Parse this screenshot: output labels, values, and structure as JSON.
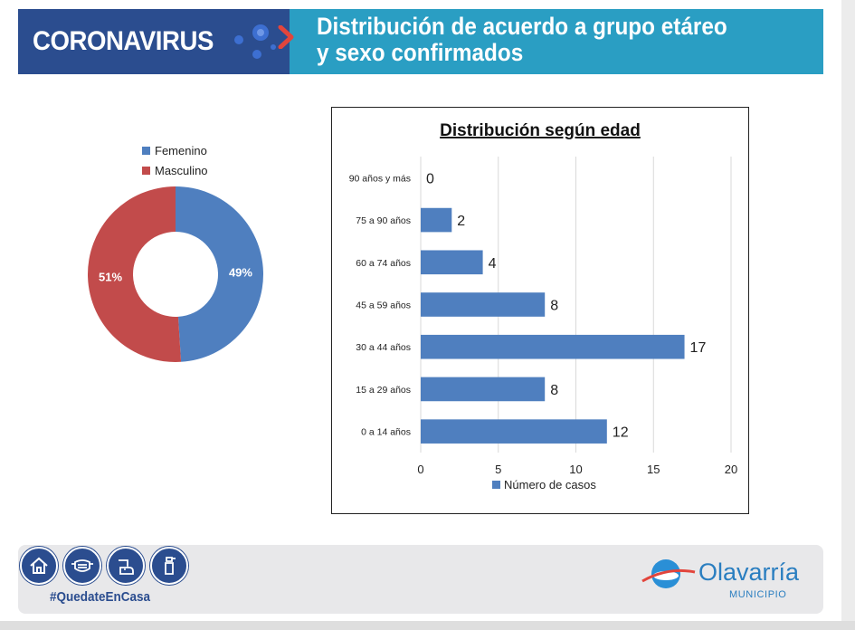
{
  "header": {
    "brand": "CORONAVIRUS",
    "title_line1": "Distribución de acuerdo a grupo etáreo",
    "title_line2": "y sexo confirmados",
    "brand_color": "#2b4d8f",
    "title_bg_color": "#2a9ec3",
    "chevron_color": "#e2453c"
  },
  "chart_data": [
    {
      "type": "pie",
      "donut": true,
      "title": "",
      "legend_position": "top",
      "slices": [
        {
          "name": "Femenino",
          "value": 49,
          "label": "49%",
          "color": "#4f7fbf"
        },
        {
          "name": "Masculino",
          "value": 51,
          "label": "51%",
          "color": "#c24b4b"
        }
      ]
    },
    {
      "type": "bar",
      "orientation": "horizontal",
      "title": "Distribución según edad",
      "categories": [
        "90 años y más",
        "75 a 90 años",
        "60 a 74 años",
        "45 a 59 años",
        "30 a 44 años",
        "15 a 29 años",
        "0 a 14 años"
      ],
      "series": [
        {
          "name": "Número de casos",
          "values": [
            0,
            2,
            4,
            8,
            17,
            8,
            12
          ],
          "color": "#4f7fbf"
        }
      ],
      "xlim": [
        0,
        20
      ],
      "xticks": [
        0,
        5,
        10,
        15,
        20
      ],
      "grid": "vertical",
      "legend_position": "bottom"
    }
  ],
  "footer": {
    "hashtag": "#QuedateEnCasa",
    "icons": [
      "house-icon",
      "face-mask-icon",
      "hand-washing-icon",
      "spray-bottle-icon"
    ],
    "logo_name": "Olavarría",
    "logo_sub": "MUNICIPIO",
    "logo_color": "#2a7ec0"
  }
}
